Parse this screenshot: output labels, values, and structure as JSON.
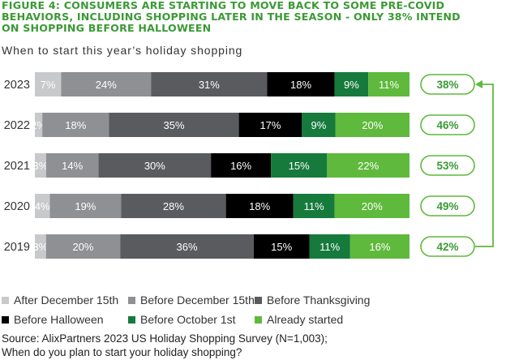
{
  "figure": {
    "title_line1": "FIGURE 4: CONSUMERS ARE STARTING TO MOVE BACK TO SOME PRE-COVID",
    "title_line2": "BEHAVIORS, INCLUDING SHOPPING LATER IN THE SEASON - ONLY 38% INTEND",
    "title_line3": "ON SHOPPING BEFORE HALLOWEEN",
    "subtitle": "When to start this year’s holiday shopping",
    "source_line1": "Source: AlixPartners 2023 US Holiday Shopping Survey (N=1,003);",
    "source_line2": "When do you plan to start your holiday shopping?"
  },
  "colors": {
    "title_green": "#3a9a35",
    "after_dec15": "#c8c9cb",
    "before_dec15": "#8f9093",
    "before_thanksgiving": "#5a5b5e",
    "before_halloween": "#000000",
    "before_oct1": "#167a3c",
    "already_started": "#5fb93c",
    "pill_border": "#5fb93c",
    "pill_text": "#3a9a35",
    "arrow": "#5fb93c"
  },
  "legend": [
    {
      "label": "After December 15th",
      "color": "#c8c9cb"
    },
    {
      "label": "Before December 15th",
      "color": "#8f9093"
    },
    {
      "label": "Before Thanksgiving",
      "color": "#5a5b5e"
    },
    {
      "label": "Before Halloween",
      "color": "#000000"
    },
    {
      "label": "Before October 1st",
      "color": "#167a3c"
    },
    {
      "label": "Already started",
      "color": "#5fb93c"
    }
  ],
  "chart_data": {
    "type": "bar",
    "orientation": "horizontal",
    "stacked": true,
    "title": "When to start this year’s holiday shopping",
    "categories": [
      "2023",
      "2022",
      "2021",
      "2020",
      "2019"
    ],
    "series": [
      {
        "name": "After December 15th",
        "values": [
          7,
          2,
          3,
          4,
          3
        ],
        "labels": [
          "7%",
          "2%",
          "3%",
          "4%",
          "3%"
        ]
      },
      {
        "name": "Before December 15th",
        "values": [
          24,
          18,
          14,
          19,
          20
        ],
        "labels": [
          "24%",
          "18%",
          "14%",
          "19%",
          "20%"
        ]
      },
      {
        "name": "Before Thanksgiving",
        "values": [
          31,
          35,
          30,
          28,
          36
        ],
        "labels": [
          "31%",
          "35%",
          "30%",
          "28%",
          "36%"
        ]
      },
      {
        "name": "Before Halloween",
        "values": [
          18,
          17,
          16,
          18,
          15
        ],
        "labels": [
          "18%",
          "17%",
          "16%",
          "18%",
          "15%"
        ]
      },
      {
        "name": "Before October 1st",
        "values": [
          9,
          9,
          15,
          11,
          11
        ],
        "labels": [
          "9%",
          "9%",
          "15%",
          "11%",
          "11%"
        ]
      },
      {
        "name": "Already started",
        "values": [
          11,
          20,
          22,
          20,
          16
        ],
        "labels": [
          "11%",
          "20%",
          "22%",
          "20%",
          "16%"
        ]
      }
    ],
    "totals": {
      "values": [
        38,
        46,
        53,
        49,
        42
      ],
      "labels": [
        "38%",
        "46%",
        "53%",
        "49%",
        "42%"
      ]
    },
    "arrow": "connects 2019 total (42%) up to 2023 total (38%)",
    "legend_position": "bottom",
    "grid": false
  }
}
